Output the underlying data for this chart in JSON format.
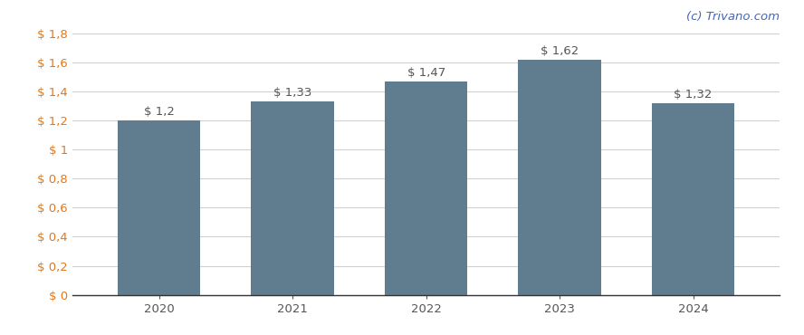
{
  "categories": [
    "2020",
    "2021",
    "2022",
    "2023",
    "2024"
  ],
  "values": [
    1.2,
    1.33,
    1.47,
    1.62,
    1.32
  ],
  "labels": [
    "$ 1,2",
    "$ 1,33",
    "$ 1,47",
    "$ 1,62",
    "$ 1,32"
  ],
  "bar_color": "#607d8f",
  "background_color": "#ffffff",
  "grid_color": "#d0d0d0",
  "ylim": [
    0,
    1.8
  ],
  "yticks": [
    0,
    0.2,
    0.4,
    0.6,
    0.8,
    1.0,
    1.2,
    1.4,
    1.6,
    1.8
  ],
  "ytick_labels": [
    "$ 0",
    "$ 0,2",
    "$ 0,4",
    "$ 0,6",
    "$ 0,8",
    "$ 1",
    "$ 1,2",
    "$ 1,4",
    "$ 1,6",
    "$ 1,8"
  ],
  "watermark": "(c) Trivano.com",
  "watermark_color": "#4466bb",
  "tick_color": "#e07820",
  "label_color": "#555555",
  "label_fontsize": 9.5,
  "tick_fontsize": 9.5,
  "watermark_fontsize": 9.5,
  "bar_width": 0.62
}
